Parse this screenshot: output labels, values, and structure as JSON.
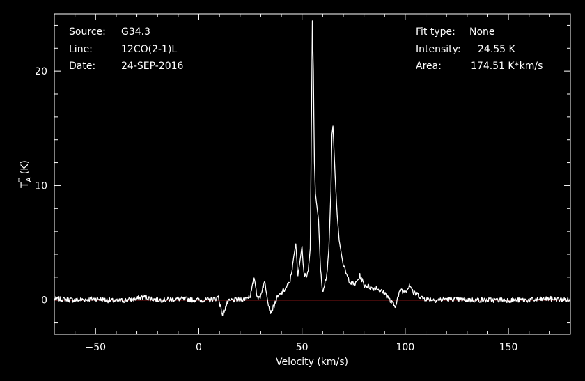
{
  "header": {
    "source_label": "Source:",
    "source_value": "G34.3",
    "line_label": "Line:",
    "line_value": "12CO(2-1)L",
    "date_label": "Date:",
    "date_value": "24-SEP-2016",
    "fit_label": "Fit type:",
    "fit_value": "None",
    "intensity_label": "Intensity:",
    "intensity_value": "24.55 K",
    "area_label": "Area:",
    "area_value": "174.51 K*km/s"
  },
  "colors": {
    "background": "#000000",
    "foreground": "#ffffff",
    "baseline": "#ff2a2a"
  },
  "chart_data": {
    "type": "line",
    "xlabel": "Velocity (km/s)",
    "ylabel_main": "T",
    "ylabel_sup": "*",
    "ylabel_sub": "A",
    "ylabel_unit": "(K)",
    "xlim": [
      -70,
      180
    ],
    "ylim": [
      -3,
      25
    ],
    "x_ticks": [
      -50,
      0,
      50,
      100,
      150
    ],
    "x_tick_labels": [
      "−50",
      "0",
      "50",
      "100",
      "150"
    ],
    "y_ticks": [
      0,
      10,
      20
    ],
    "y_tick_labels": [
      "0",
      "10",
      "20"
    ],
    "baseline": 0,
    "grid": false,
    "series": [
      {
        "x": [
          -70,
          -60,
          -50,
          -40,
          -30,
          -27,
          -25,
          -20,
          -10,
          0,
          5,
          8,
          9.5,
          10.5,
          11.5,
          12.5,
          14,
          16,
          18,
          22,
          25,
          26,
          27,
          28,
          29,
          30,
          31,
          32,
          33,
          34,
          35,
          38,
          40,
          42,
          44,
          45,
          46,
          47,
          47.5,
          48,
          49,
          50,
          50.5,
          51,
          52,
          53,
          54,
          54.5,
          55,
          55.5,
          56,
          56.5,
          57,
          58,
          59,
          60,
          61,
          62,
          63,
          64,
          64.5,
          65,
          66,
          67,
          68,
          70,
          72,
          74,
          76,
          78,
          79,
          80,
          82,
          84,
          86,
          88,
          90,
          92,
          93,
          94,
          95,
          96,
          97,
          98,
          99,
          100,
          101,
          102,
          103,
          104,
          106,
          108,
          110,
          115,
          120,
          130,
          140,
          150,
          160,
          170,
          180
        ],
        "y": [
          0.1,
          0.0,
          0.1,
          -0.1,
          0.1,
          0.3,
          0.2,
          0.0,
          0.1,
          0.0,
          0.0,
          0.1,
          0.3,
          -0.6,
          -1.3,
          -0.8,
          -0.2,
          0.0,
          0.0,
          0.1,
          0.4,
          1.2,
          1.9,
          0.6,
          0.1,
          0.4,
          1.2,
          1.5,
          0.5,
          -0.6,
          -1.1,
          0.2,
          0.6,
          1.0,
          1.5,
          2.5,
          3.8,
          4.9,
          3.5,
          2.0,
          3.4,
          4.7,
          3.2,
          2.2,
          2.1,
          2.6,
          4.5,
          14.5,
          24.4,
          20.0,
          12.0,
          9.3,
          8.5,
          7.0,
          2.5,
          0.8,
          1.5,
          2.2,
          4.5,
          9.5,
          14.5,
          15.2,
          11.0,
          7.5,
          5.2,
          3.0,
          2.0,
          1.4,
          1.4,
          2.1,
          1.8,
          1.3,
          1.2,
          1.0,
          1.1,
          0.8,
          0.6,
          0.2,
          -0.2,
          -0.3,
          -0.6,
          0.0,
          0.5,
          1.0,
          0.7,
          0.9,
          0.9,
          1.4,
          1.1,
          0.6,
          0.5,
          0.2,
          0.1,
          0.0,
          0.1,
          0.0,
          0.0,
          0.0,
          0.0,
          0.1,
          0.0
        ]
      }
    ]
  }
}
